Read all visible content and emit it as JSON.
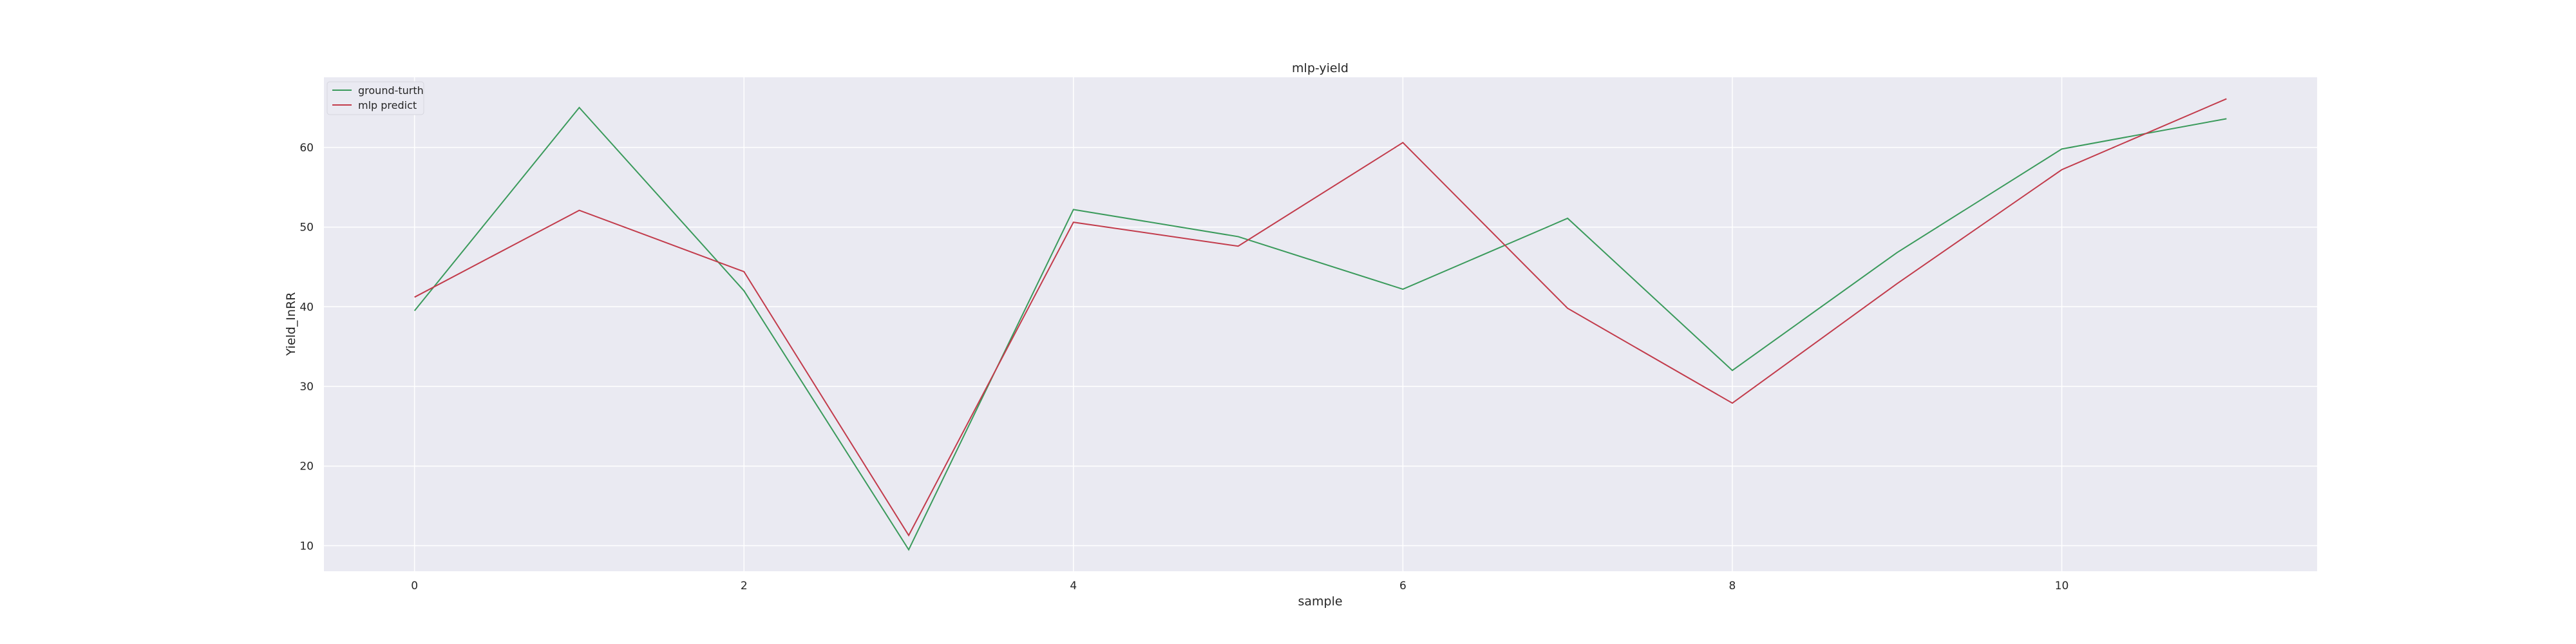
{
  "chart_data": {
    "type": "line",
    "title": "mlp-yield",
    "xlabel": "sample",
    "ylabel": "Yield_InRR",
    "x": [
      0,
      1,
      2,
      3,
      4,
      5,
      6,
      7,
      8,
      9,
      10,
      11
    ],
    "xlim": [
      -0.55,
      11.55
    ],
    "ylim": [
      6.8,
      68.8
    ],
    "xticks": [
      0,
      2,
      4,
      6,
      8,
      10
    ],
    "yticks": [
      10,
      20,
      30,
      40,
      50,
      60
    ],
    "grid": true,
    "legend_position": "top-left",
    "series": [
      {
        "name": "ground-turth",
        "color": "#3a9a5b",
        "values": [
          39.5,
          65.0,
          42.0,
          9.5,
          52.2,
          48.8,
          42.2,
          51.1,
          32.0,
          46.8,
          59.8,
          63.6
        ]
      },
      {
        "name": "mlp predict",
        "color": "#c23b4b",
        "values": [
          41.2,
          52.1,
          44.4,
          11.3,
          50.6,
          47.6,
          60.6,
          39.8,
          27.9,
          42.9,
          57.2,
          66.1
        ]
      }
    ],
    "colors": {
      "background": "#ffffff",
      "plot_background": "#eaeaf2",
      "grid": "#ffffff",
      "text": "#262626"
    }
  }
}
